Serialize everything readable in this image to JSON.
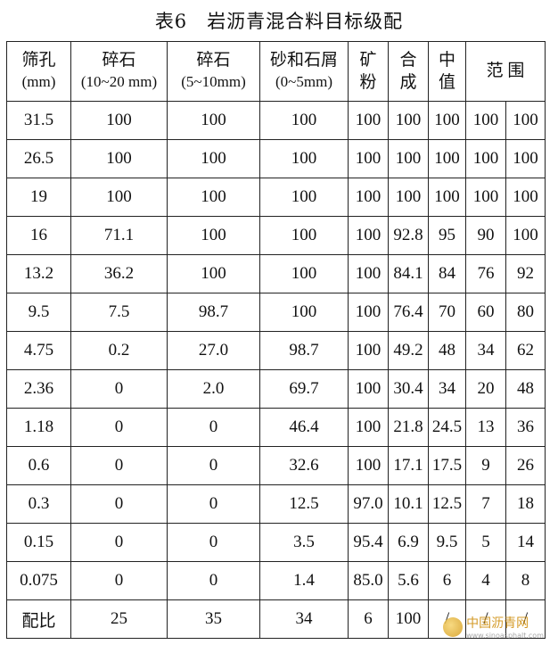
{
  "title": {
    "number": "表6",
    "text": "岩沥青混合料目标级配"
  },
  "headers": {
    "sieve": {
      "line1": "筛孔",
      "line2": "(mm)"
    },
    "c1": {
      "line1": "碎石",
      "line2": "(10~20 mm)"
    },
    "c2": {
      "line1": "碎石",
      "line2": "(5~10mm)"
    },
    "c3": {
      "line1": "砂和石屑",
      "line2": "(0~5mm)"
    },
    "c4": {
      "line1": "矿",
      "line2": "粉"
    },
    "c5": {
      "line1": "合",
      "line2": "成"
    },
    "c6": {
      "line1": "中",
      "line2": "值"
    },
    "c7": "范 围"
  },
  "rows": [
    [
      "31.5",
      "100",
      "100",
      "100",
      "100",
      "100",
      "100",
      "100",
      "100"
    ],
    [
      "26.5",
      "100",
      "100",
      "100",
      "100",
      "100",
      "100",
      "100",
      "100"
    ],
    [
      "19",
      "100",
      "100",
      "100",
      "100",
      "100",
      "100",
      "100",
      "100"
    ],
    [
      "16",
      "71.1",
      "100",
      "100",
      "100",
      "92.8",
      "95",
      "90",
      "100"
    ],
    [
      "13.2",
      "36.2",
      "100",
      "100",
      "100",
      "84.1",
      "84",
      "76",
      "92"
    ],
    [
      "9.5",
      "7.5",
      "98.7",
      "100",
      "100",
      "76.4",
      "70",
      "60",
      "80"
    ],
    [
      "4.75",
      "0.2",
      "27.0",
      "98.7",
      "100",
      "49.2",
      "48",
      "34",
      "62"
    ],
    [
      "2.36",
      "0",
      "2.0",
      "69.7",
      "100",
      "30.4",
      "34",
      "20",
      "48"
    ],
    [
      "1.18",
      "0",
      "0",
      "46.4",
      "100",
      "21.8",
      "24.5",
      "13",
      "36"
    ],
    [
      "0.6",
      "0",
      "0",
      "32.6",
      "100",
      "17.1",
      "17.5",
      "9",
      "26"
    ],
    [
      "0.3",
      "0",
      "0",
      "12.5",
      "97.0",
      "10.1",
      "12.5",
      "7",
      "18"
    ],
    [
      "0.15",
      "0",
      "0",
      "3.5",
      "95.4",
      "6.9",
      "9.5",
      "5",
      "14"
    ],
    [
      "0.075",
      "0",
      "0",
      "1.4",
      "85.0",
      "5.6",
      "6",
      "4",
      "8"
    ],
    [
      "配比",
      "25",
      "35",
      "34",
      "6",
      "100",
      "/",
      "/",
      "/"
    ]
  ],
  "watermark": {
    "text": "中国沥青网",
    "url": "www.sinoasphalt.com"
  }
}
